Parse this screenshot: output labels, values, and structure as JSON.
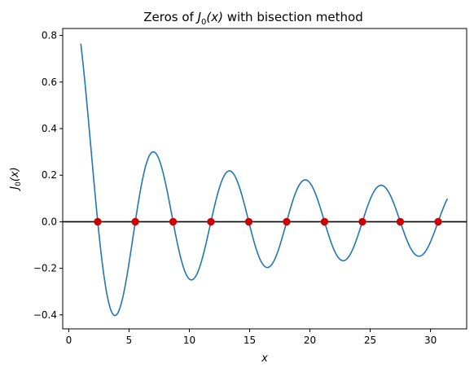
{
  "chart_data": {
    "type": "line",
    "title": {
      "prefix": "Zeros of ",
      "func": "J",
      "sub": "0",
      "arg": "(x)",
      "suffix": " with bisection method"
    },
    "xlabel": "x",
    "ylabel": {
      "func": "J",
      "sub": "0",
      "arg": "(x)"
    },
    "xlim": [
      -0.5,
      33.0
    ],
    "ylim": [
      -0.46,
      0.83
    ],
    "xticks": [
      0,
      5,
      10,
      15,
      20,
      25,
      30
    ],
    "xtick_labels": [
      "0",
      "5",
      "10",
      "15",
      "20",
      "25",
      "30"
    ],
    "yticks": [
      -0.4,
      -0.2,
      0.0,
      0.2,
      0.4,
      0.6,
      0.8
    ],
    "ytick_labels": [
      "−0.4",
      "−0.2",
      "0.0",
      "0.2",
      "0.4",
      "0.6",
      "0.8"
    ],
    "grid": false,
    "curve": {
      "function": "J0",
      "x_start": 1.0,
      "x_end": 31.4,
      "color": "#1f77b4"
    },
    "zero_line": {
      "y": 0.0,
      "color": "#000000"
    },
    "zeros": {
      "x": [
        2.405,
        5.52,
        8.654,
        11.792,
        14.931,
        18.071,
        21.212,
        24.352,
        27.493,
        30.635
      ],
      "y": [
        0,
        0,
        0,
        0,
        0,
        0,
        0,
        0,
        0,
        0
      ],
      "color": "#cc0000"
    }
  }
}
